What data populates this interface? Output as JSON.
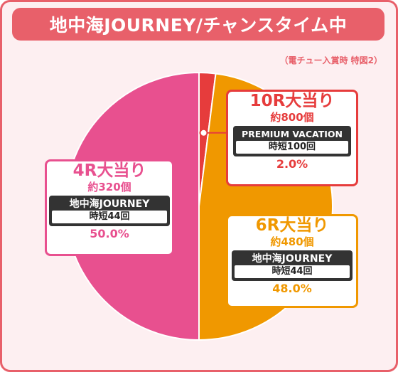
{
  "header": {
    "title": "地中海JOURNEY/チャンスタイム中",
    "note": "（電チュー入賞時 特図2）"
  },
  "colors": {
    "frame": "#e8606a",
    "background": "#fdeff1",
    "slice_10r": "#e63c3c",
    "slice_6r": "#f09800",
    "slice_4r": "#e8508f"
  },
  "chart_data": {
    "type": "pie",
    "title": "地中海JOURNEY/チャンスタイム中",
    "slices": [
      {
        "label": "10R大当り",
        "approx": "約800個",
        "mode": "PREMIUM VACATION",
        "jitan": "時短100回",
        "value": 2.0,
        "percent_text": "2.0%",
        "color": "#e63c3c"
      },
      {
        "label": "6R大当り",
        "approx": "約480個",
        "mode": "地中海JOURNEY",
        "jitan": "時短44回",
        "value": 48.0,
        "percent_text": "48.0%",
        "color": "#f09800"
      },
      {
        "label": "4R大当り",
        "approx": "約320個",
        "mode": "地中海JOURNEY",
        "jitan": "時短44回",
        "value": 50.0,
        "percent_text": "50.0%",
        "color": "#e8508f"
      }
    ]
  }
}
